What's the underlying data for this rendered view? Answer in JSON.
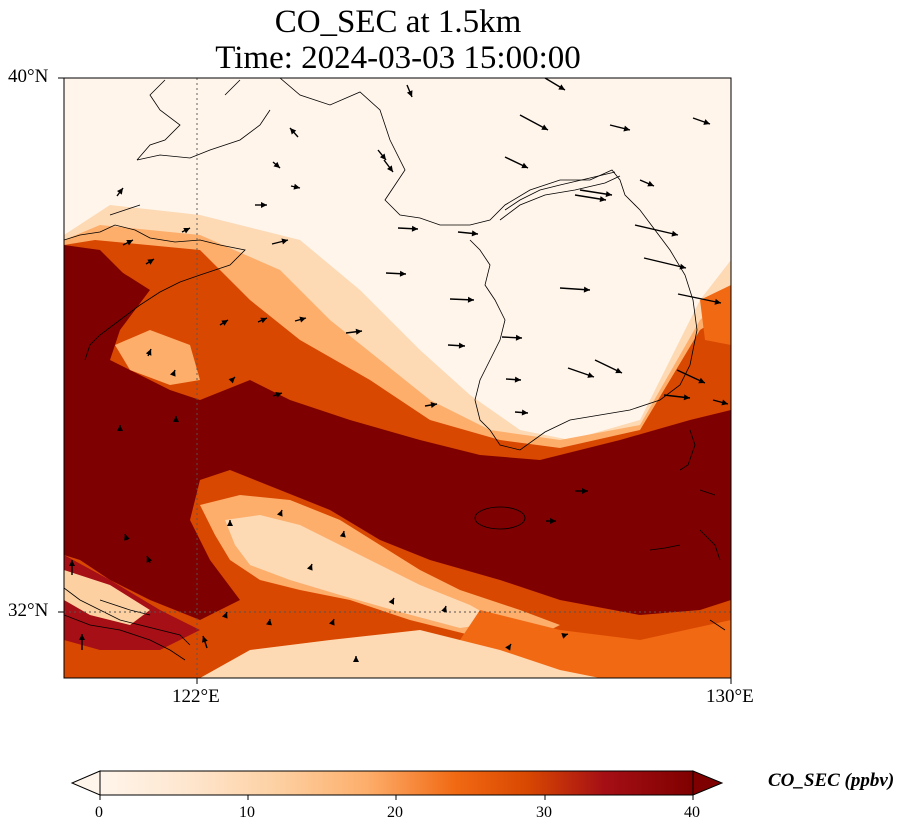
{
  "title": {
    "line1": "CO_SEC at 1.5km",
    "line2": "Time: 2024-03-03 15:00:00"
  },
  "axes": {
    "lat_top_label": "40°N",
    "lat_bottom_label": "32°N",
    "lon_left_label": "122°E",
    "lon_right_label": "130°E"
  },
  "colorbar": {
    "label": "CO_SEC (ppbv)",
    "ticks": [
      "0",
      "10",
      "20",
      "30",
      "40"
    ],
    "min": 0,
    "max": 40,
    "extend": "both",
    "colormap": [
      "#fff5eb",
      "#fdd9b4",
      "#fdae6b",
      "#f16913",
      "#d94801",
      "#a50f15",
      "#7f0000"
    ]
  },
  "map": {
    "projection": "lat-lon",
    "lon_range": [
      120,
      130
    ],
    "lat_range": [
      31,
      40
    ],
    "gridlines": "dotted",
    "background_color": "#fff5eb",
    "high_value_color": "#7f0000",
    "features": [
      "coastlines",
      "korean-peninsula",
      "jeju-island",
      "yangtze-delta"
    ],
    "wind_vectors": "black arrows"
  }
}
